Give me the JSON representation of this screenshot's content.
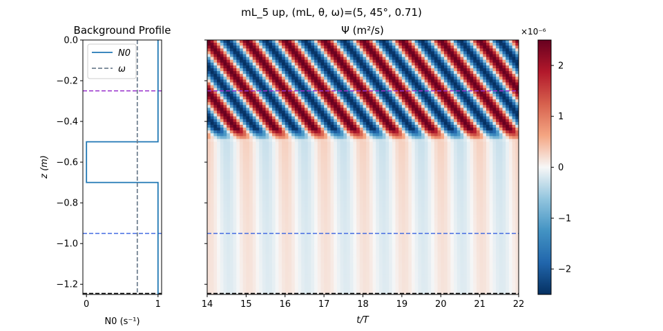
{
  "figure": {
    "suptitle": "mL_5 up, (mL, θ, ω)=(5, 45°, 0.71)"
  },
  "chart_data": [
    {
      "type": "line",
      "title": "Background Profile",
      "xlabel": "N0 (s⁻¹)",
      "ylabel": "z (m)",
      "xlim": [
        -0.05,
        1.05
      ],
      "ylim": [
        -1.25,
        0.0
      ],
      "xticks": [
        0,
        1
      ],
      "yticks": [
        0.0,
        -0.2,
        -0.4,
        -0.6,
        -0.8,
        -1.0,
        -1.2
      ],
      "legend": {
        "placement": "top-left",
        "entries": [
          "N0",
          "ω"
        ]
      },
      "series": [
        {
          "name": "N0",
          "color": "#1f77b4",
          "style": "solid",
          "x": [
            1,
            1,
            0,
            0,
            1,
            1
          ],
          "y": [
            0.0,
            -0.5,
            -0.5,
            -0.7,
            -0.7,
            -1.25
          ]
        },
        {
          "name": "ω",
          "color": "#708090",
          "style": "dashed",
          "x": [
            0.71,
            0.71
          ],
          "y": [
            0.0,
            -1.25
          ]
        }
      ],
      "hlines": [
        {
          "y": -0.25,
          "color": "#9932cc"
        },
        {
          "y": -0.95,
          "color": "#4169e1"
        },
        {
          "y": -1.245,
          "color": "#000000"
        }
      ]
    },
    {
      "type": "heatmap",
      "title": "Ψ (m²/s)",
      "xlabel": "t/T",
      "xlim": [
        14,
        22
      ],
      "ylim": [
        -1.25,
        0.0
      ],
      "xticks": [
        14,
        15,
        16,
        17,
        18,
        19,
        20,
        21,
        22
      ],
      "colormap": "RdBu_r",
      "colorbar": {
        "multiplier": "×10⁻⁶",
        "ticks": [
          2,
          1,
          0,
          -1,
          -2
        ],
        "tick_labels": [
          "2",
          "1",
          "0",
          "−1",
          "−2"
        ],
        "range": [
          -2.5,
          2.5
        ]
      },
      "field": {
        "amplitude_upper": 2.5,
        "amplitude_lower": 0.3,
        "upper_band": [
          0.0,
          -0.5
        ],
        "period_t": 1,
        "vertical_wavelength_m": 0.25
      },
      "hlines": [
        {
          "y": -0.25,
          "color": "#9932cc"
        },
        {
          "y": -0.95,
          "color": "#4169e1"
        },
        {
          "y": -1.245,
          "color": "#000000"
        }
      ]
    }
  ]
}
